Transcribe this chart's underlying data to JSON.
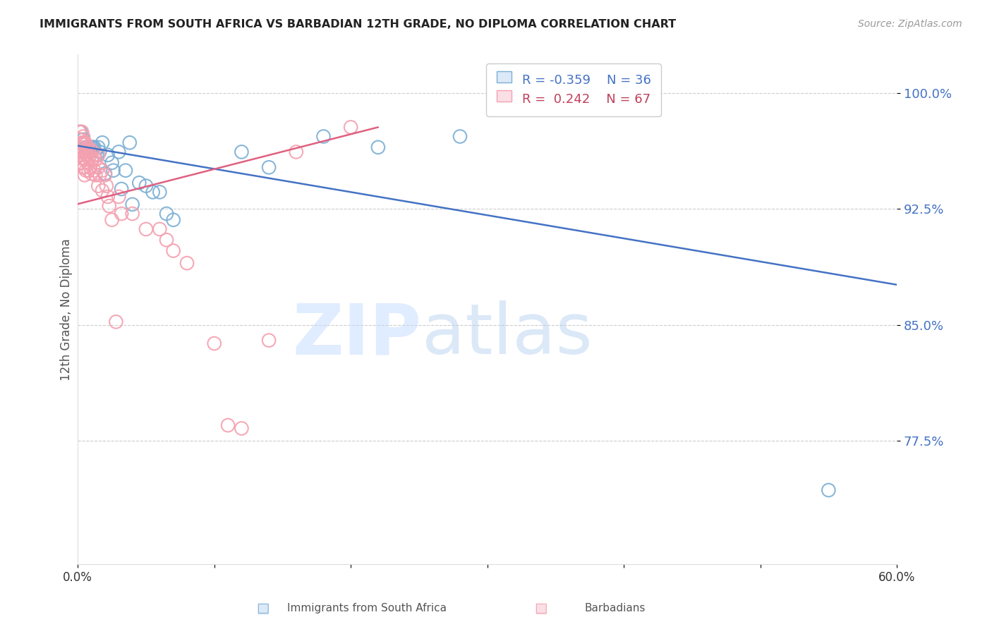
{
  "title": "IMMIGRANTS FROM SOUTH AFRICA VS BARBADIAN 12TH GRADE, NO DIPLOMA CORRELATION CHART",
  "source": "Source: ZipAtlas.com",
  "ylabel": "12th Grade, No Diploma",
  "xlim": [
    0.0,
    0.6
  ],
  "ylim": [
    0.695,
    1.025
  ],
  "yticks": [
    0.775,
    0.85,
    0.925,
    1.0
  ],
  "ytick_labels": [
    "77.5%",
    "85.0%",
    "92.5%",
    "100.0%"
  ],
  "xticks": [
    0.0,
    0.1,
    0.2,
    0.3,
    0.4,
    0.5,
    0.6
  ],
  "xtick_labels": [
    "0.0%",
    "",
    "",
    "",
    "",
    "",
    "60.0%"
  ],
  "legend_blue_r": "-0.359",
  "legend_blue_n": "36",
  "legend_pink_r": "0.242",
  "legend_pink_n": "67",
  "blue_color": "#7BAFD4",
  "pink_color": "#F4A0B0",
  "blue_trend_color": "#4472C4",
  "pink_trend_color": "#E06080",
  "watermark_zip": "ZIP",
  "watermark_atlas": "atlas",
  "blue_scatter_x": [
    0.002,
    0.003,
    0.004,
    0.005,
    0.006,
    0.007,
    0.008,
    0.009,
    0.01,
    0.011,
    0.012,
    0.014,
    0.015,
    0.016,
    0.018,
    0.02,
    0.022,
    0.025,
    0.026,
    0.03,
    0.032,
    0.035,
    0.038,
    0.04,
    0.045,
    0.05,
    0.055,
    0.06,
    0.065,
    0.07,
    0.12,
    0.14,
    0.18,
    0.22,
    0.28,
    0.55
  ],
  "blue_scatter_y": [
    0.975,
    0.962,
    0.97,
    0.968,
    0.965,
    0.965,
    0.965,
    0.962,
    0.965,
    0.965,
    0.965,
    0.96,
    0.965,
    0.962,
    0.968,
    0.948,
    0.96,
    0.955,
    0.95,
    0.962,
    0.938,
    0.95,
    0.968,
    0.928,
    0.942,
    0.94,
    0.936,
    0.936,
    0.922,
    0.918,
    0.962,
    0.952,
    0.972,
    0.965,
    0.972,
    0.743
  ],
  "pink_scatter_x": [
    0.001,
    0.001,
    0.001,
    0.002,
    0.002,
    0.002,
    0.002,
    0.003,
    0.003,
    0.003,
    0.003,
    0.004,
    0.004,
    0.004,
    0.004,
    0.004,
    0.005,
    0.005,
    0.005,
    0.005,
    0.005,
    0.006,
    0.006,
    0.006,
    0.006,
    0.007,
    0.007,
    0.007,
    0.008,
    0.008,
    0.008,
    0.009,
    0.009,
    0.01,
    0.01,
    0.01,
    0.011,
    0.012,
    0.012,
    0.013,
    0.013,
    0.015,
    0.015,
    0.015,
    0.016,
    0.018,
    0.018,
    0.02,
    0.021,
    0.022,
    0.023,
    0.025,
    0.028,
    0.03,
    0.032,
    0.04,
    0.05,
    0.06,
    0.065,
    0.07,
    0.08,
    0.1,
    0.11,
    0.12,
    0.14,
    0.16,
    0.2
  ],
  "pink_scatter_y": [
    0.975,
    0.97,
    0.962,
    0.97,
    0.965,
    0.96,
    0.955,
    0.975,
    0.968,
    0.962,
    0.958,
    0.972,
    0.967,
    0.962,
    0.958,
    0.952,
    0.968,
    0.963,
    0.958,
    0.952,
    0.947,
    0.967,
    0.962,
    0.957,
    0.95,
    0.965,
    0.96,
    0.955,
    0.963,
    0.958,
    0.95,
    0.96,
    0.952,
    0.963,
    0.957,
    0.948,
    0.957,
    0.96,
    0.95,
    0.957,
    0.947,
    0.96,
    0.952,
    0.94,
    0.947,
    0.95,
    0.937,
    0.947,
    0.94,
    0.933,
    0.927,
    0.918,
    0.852,
    0.933,
    0.922,
    0.922,
    0.912,
    0.912,
    0.905,
    0.898,
    0.89,
    0.838,
    0.785,
    0.783,
    0.84,
    0.962,
    0.978
  ],
  "blue_trend_x": [
    0.0,
    0.6
  ],
  "blue_trend_y": [
    0.966,
    0.876
  ],
  "pink_trend_x": [
    -0.01,
    0.22
  ],
  "pink_trend_y": [
    0.926,
    0.978
  ]
}
